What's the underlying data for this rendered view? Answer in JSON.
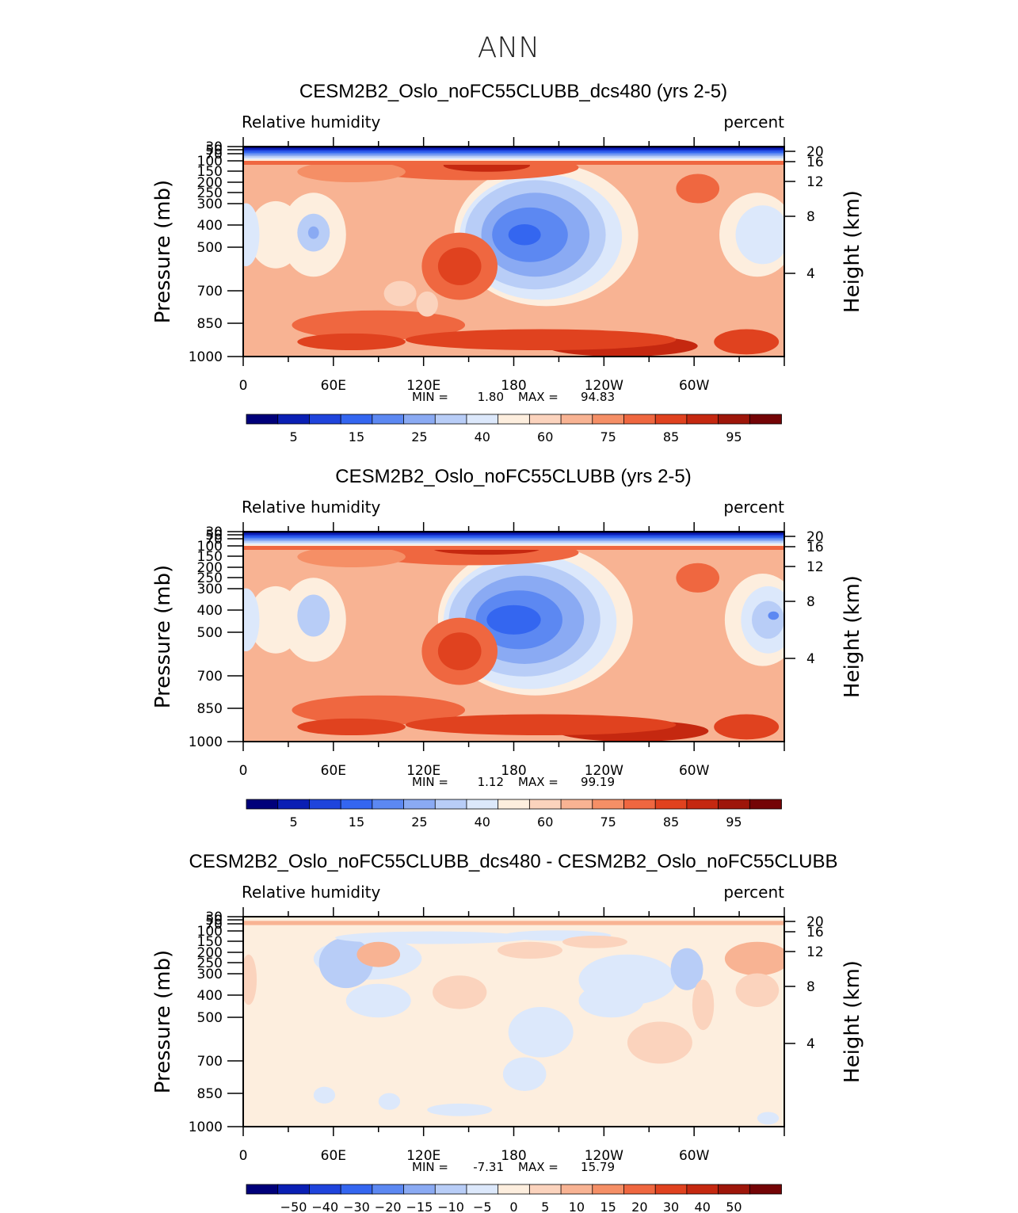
{
  "figure": {
    "title": "ANN",
    "colors": [
      "#00007a",
      "#0a1fb4",
      "#1f44dc",
      "#3466f0",
      "#5c88f2",
      "#8aaaf3",
      "#b8cdf7",
      "#dce8fb",
      "#fdeede",
      "#fbd3bd",
      "#f8b393",
      "#f58f66",
      "#ef6740",
      "#e0421f",
      "#c52810",
      "#9e160a",
      "#740406"
    ]
  },
  "chart_data": [
    {
      "type": "heatmap",
      "title": "CESM2B2_Oslo_noFC55CLUBB_dcs480 (yrs 2-5)",
      "left_string": "Relative humidity",
      "right_string": "percent",
      "ylabel": "Pressure (mb)",
      "ylabel_right": "Height (km)",
      "x_ticks": [
        "0",
        "60E",
        "120E",
        "180",
        "120W",
        "60W"
      ],
      "y_ticks": [
        "30",
        "50",
        "70",
        "100",
        "150",
        "200",
        "250",
        "300",
        "400",
        "500",
        "700",
        "850",
        "1000"
      ],
      "y_ticks_right": [
        "20",
        "16",
        "12",
        "8",
        "4"
      ],
      "min_label": "MIN =",
      "min": "1.80",
      "max_label": "MAX =",
      "max": "94.83",
      "colorbar_labels": [
        "5",
        "15",
        "25",
        "40",
        "60",
        "75",
        "85",
        "95"
      ],
      "colorbar_label_bins": [
        1,
        3,
        5,
        7,
        9,
        11,
        13,
        15
      ],
      "ylim": [
        1000,
        30
      ]
    },
    {
      "type": "heatmap",
      "title": "CESM2B2_Oslo_noFC55CLUBB (yrs 2-5)",
      "left_string": "Relative humidity",
      "right_string": "percent",
      "ylabel": "Pressure (mb)",
      "ylabel_right": "Height (km)",
      "x_ticks": [
        "0",
        "60E",
        "120E",
        "180",
        "120W",
        "60W"
      ],
      "y_ticks": [
        "30",
        "50",
        "70",
        "100",
        "150",
        "200",
        "250",
        "300",
        "400",
        "500",
        "700",
        "850",
        "1000"
      ],
      "y_ticks_right": [
        "20",
        "16",
        "12",
        "8",
        "4"
      ],
      "min_label": "MIN =",
      "min": "1.12",
      "max_label": "MAX =",
      "max": "99.19",
      "colorbar_labels": [
        "5",
        "15",
        "25",
        "40",
        "60",
        "75",
        "85",
        "95"
      ],
      "colorbar_label_bins": [
        1,
        3,
        5,
        7,
        9,
        11,
        13,
        15
      ],
      "ylim": [
        1000,
        30
      ]
    },
    {
      "type": "heatmap",
      "title": "CESM2B2_Oslo_noFC55CLUBB_dcs480 - CESM2B2_Oslo_noFC55CLUBB",
      "left_string": "Relative humidity",
      "right_string": "percent",
      "ylabel": "Pressure (mb)",
      "ylabel_right": "Height (km)",
      "x_ticks": [
        "0",
        "60E",
        "120E",
        "180",
        "120W",
        "60W"
      ],
      "y_ticks": [
        "30",
        "50",
        "70",
        "100",
        "150",
        "200",
        "250",
        "300",
        "400",
        "500",
        "700",
        "850",
        "1000"
      ],
      "y_ticks_right": [
        "20",
        "16",
        "12",
        "8",
        "4"
      ],
      "min_label": "MIN =",
      "min": "-7.31",
      "max_label": "MAX =",
      "max": "15.79",
      "colorbar_labels": [
        "−50",
        "−40",
        "−30",
        "−20",
        "−15",
        "−10",
        "−5",
        "0",
        "5",
        "10",
        "15",
        "20",
        "30",
        "40",
        "50"
      ],
      "colorbar_label_bins": [
        1,
        2,
        3,
        4,
        5,
        6,
        7,
        8,
        9,
        10,
        11,
        12,
        13,
        14,
        15
      ],
      "ylim": [
        1000,
        30
      ]
    }
  ]
}
